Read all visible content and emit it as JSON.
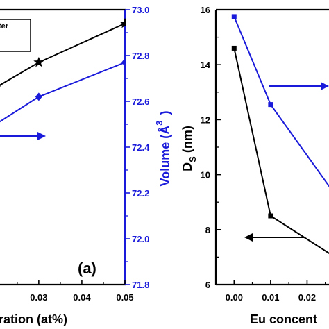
{
  "chart_data": [
    {
      "type": "line",
      "panel_label": "(a)",
      "legend_fragment": "ter",
      "xlabel_fragment": "tration (at%)",
      "x_ticks": [
        "0.03",
        "0.04",
        "0.05"
      ],
      "xlim": [
        0.021,
        0.05
      ],
      "y2label": "Volume (Å",
      "y2label_sup": "3",
      "y2label_close": ")",
      "y2_ticks": [
        "73.0",
        "72.8",
        "72.6",
        "72.4",
        "72.2",
        "72.0",
        "71.8"
      ],
      "y2lim": [
        71.8,
        73.0
      ],
      "series": [
        {
          "axis": "left",
          "color": "#000000",
          "marker": "star",
          "points": [
            [
              0.02,
              72.66
            ],
            [
              0.03,
              72.77
            ],
            [
              0.05,
              72.94
            ]
          ]
        },
        {
          "axis": "right",
          "color": "#1a1adb",
          "marker": "diamond",
          "points": [
            [
              0.02,
              72.5
            ],
            [
              0.03,
              72.62
            ],
            [
              0.05,
              72.77
            ]
          ]
        }
      ],
      "arrow_direction": "right"
    },
    {
      "type": "line",
      "xlabel_fragment": "Eu concent",
      "x_ticks": [
        "0.00",
        "0.01",
        "0.02"
      ],
      "xlim": [
        -0.005,
        0.026
      ],
      "ylabel": "D",
      "ylabel_sub": "S",
      "ylabel_rest": " (nm)",
      "y_ticks": [
        "16",
        "14",
        "12",
        "10",
        "8",
        "6"
      ],
      "ylim": [
        6,
        16
      ],
      "series": [
        {
          "axis": "left",
          "color": "#000000",
          "marker": "square",
          "points": [
            [
              0.0,
              14.6
            ],
            [
              0.01,
              8.5
            ],
            [
              0.03,
              6.8
            ]
          ]
        },
        {
          "axis": "right",
          "color": "#1a1adb",
          "marker": "square",
          "points": [
            [
              0.0,
              15.75
            ],
            [
              0.01,
              12.55
            ],
            [
              0.027,
              9.4
            ]
          ]
        }
      ],
      "arrow_left_color": "#000000",
      "arrow_right_color": "#1a1adb"
    }
  ]
}
